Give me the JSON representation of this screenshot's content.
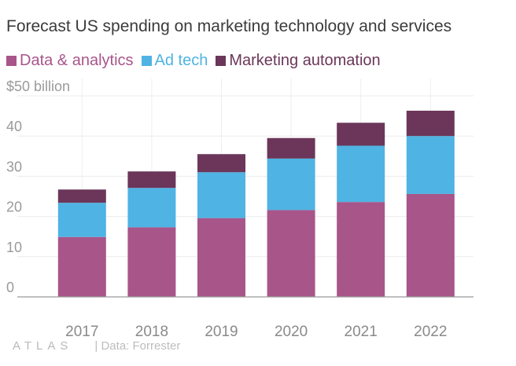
{
  "title": "Forecast US spending on marketing technology and services",
  "legend": [
    {
      "label": "Data & analytics",
      "color": "#a8558a",
      "text_color": "#a8558a"
    },
    {
      "label": "Ad tech",
      "color": "#4fb3e3",
      "text_color": "#4fb3e3"
    },
    {
      "label": "Marketing automation",
      "color": "#6b3659",
      "text_color": "#6b3659"
    }
  ],
  "footer": {
    "brand": "ATLAS",
    "source": "| Data: Forrester"
  },
  "chart_data": {
    "type": "bar",
    "stacked": true,
    "categories": [
      "2017",
      "2018",
      "2019",
      "2020",
      "2021",
      "2022"
    ],
    "series": [
      {
        "name": "Data & analytics",
        "color": "#a8558a",
        "values": [
          14.9,
          17.3,
          19.6,
          21.6,
          23.6,
          25.6
        ]
      },
      {
        "name": "Ad tech",
        "color": "#4fb3e3",
        "values": [
          8.5,
          9.8,
          11.4,
          12.8,
          14.0,
          14.4
        ]
      },
      {
        "name": "Marketing automation",
        "color": "#6b3659",
        "values": [
          3.3,
          4.1,
          4.5,
          5.1,
          5.7,
          6.3
        ]
      }
    ],
    "ylim": [
      0,
      50
    ],
    "yticks": [
      {
        "value": 0,
        "label": "0"
      },
      {
        "value": 10,
        "label": "10"
      },
      {
        "value": 20,
        "label": "20"
      },
      {
        "value": 30,
        "label": "30"
      },
      {
        "value": 40,
        "label": "40"
      },
      {
        "value": 50,
        "label": "$50 billion"
      }
    ],
    "grid": true
  }
}
